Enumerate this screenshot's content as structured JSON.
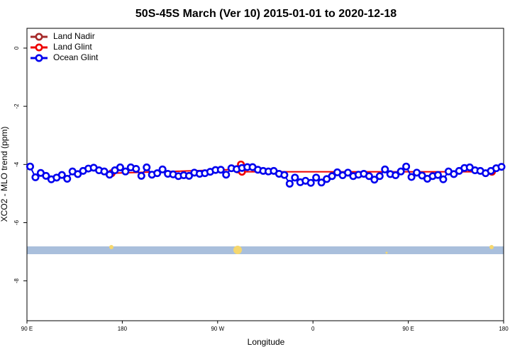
{
  "chart_data": {
    "type": "line",
    "title": "50S-45S March (Ver 10)   2015-01-01 to 2020-12-18",
    "x_label": "Longitude",
    "y_label": "XCO2 - MLO trend (ppm)",
    "xlim": [
      90,
      540
    ],
    "xticks": [
      {
        "value": 90,
        "label": "90 E"
      },
      {
        "value": 180,
        "label": "180"
      },
      {
        "value": 270,
        "label": "90 W"
      },
      {
        "value": 360,
        "label": "0"
      },
      {
        "value": 450,
        "label": "90 E"
      },
      {
        "value": 540,
        "label": "180"
      }
    ],
    "ylim": [
      -9.37,
      0.68
    ],
    "yticks": [
      0,
      -2,
      -4,
      -6,
      -8
    ],
    "legend": "top-left",
    "series": [
      {
        "name": "Land Nadir",
        "color": "#a52a2a",
        "x": [],
        "values": []
      },
      {
        "name": "Land Glint",
        "color": "#ee0000",
        "x": [
          170,
          289,
          292,
          293,
          529
        ],
        "values": [
          -4.3,
          -4.17,
          -4.0,
          -4.25,
          -4.25
        ]
      },
      {
        "name": "Ocean Glint",
        "color": "#0000ee",
        "x": [
          93,
          98,
          103,
          108,
          113,
          118,
          123,
          128,
          133,
          138,
          143,
          148,
          153,
          158,
          163,
          168,
          173,
          178,
          183,
          188,
          193,
          198,
          203,
          208,
          213,
          218,
          223,
          228,
          233,
          238,
          243,
          248,
          253,
          258,
          263,
          268,
          273,
          278,
          283,
          288,
          293,
          298,
          303,
          308,
          313,
          318,
          323,
          328,
          333,
          338,
          343,
          348,
          353,
          358,
          363,
          368,
          373,
          378,
          383,
          388,
          393,
          398,
          403,
          408,
          413,
          418,
          423,
          428,
          433,
          438,
          443,
          448,
          453,
          458,
          463,
          468,
          473,
          478,
          483,
          488,
          493,
          498,
          503,
          508,
          513,
          518,
          523,
          528,
          533,
          538
        ],
        "values": [
          -4.07,
          -4.44,
          -4.29,
          -4.39,
          -4.51,
          -4.45,
          -4.36,
          -4.49,
          -4.24,
          -4.33,
          -4.22,
          -4.14,
          -4.11,
          -4.2,
          -4.24,
          -4.35,
          -4.2,
          -4.1,
          -4.24,
          -4.1,
          -4.15,
          -4.39,
          -4.1,
          -4.35,
          -4.3,
          -4.17,
          -4.32,
          -4.34,
          -4.4,
          -4.37,
          -4.39,
          -4.28,
          -4.32,
          -4.3,
          -4.25,
          -4.19,
          -4.18,
          -4.35,
          -4.13,
          -4.16,
          -4.12,
          -4.09,
          -4.09,
          -4.18,
          -4.22,
          -4.24,
          -4.22,
          -4.32,
          -4.36,
          -4.66,
          -4.45,
          -4.61,
          -4.56,
          -4.63,
          -4.45,
          -4.62,
          -4.5,
          -4.4,
          -4.27,
          -4.37,
          -4.28,
          -4.4,
          -4.35,
          -4.32,
          -4.4,
          -4.52,
          -4.4,
          -4.17,
          -4.33,
          -4.37,
          -4.24,
          -4.07,
          -4.43,
          -4.28,
          -4.38,
          -4.49,
          -4.4,
          -4.36,
          -4.51,
          -4.24,
          -4.33,
          -4.22,
          -4.12,
          -4.1,
          -4.2,
          -4.22,
          -4.3,
          -4.22,
          -4.13,
          -4.08
        ]
      }
    ]
  }
}
